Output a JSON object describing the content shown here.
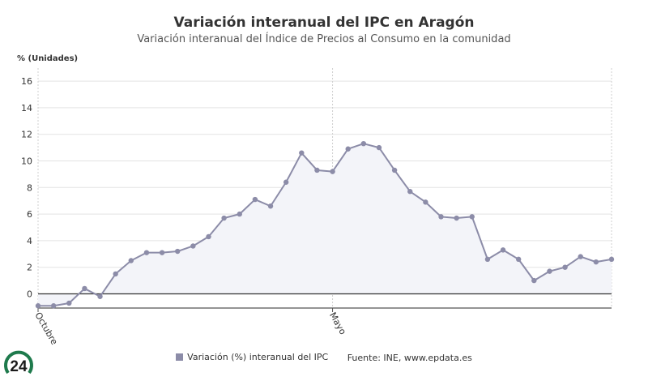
{
  "title": "Variación interanual del IPC en Aragón",
  "subtitle": "Variación interanual del Índice de Precios al Consumo en la comunidad",
  "legend": {
    "series_label": "Variación (%) interanual del IPC",
    "source": "Fuente: INE, www.epdata.es"
  },
  "logo": {
    "text": "24"
  },
  "colors": {
    "series": "#8c8ca8",
    "fill": "#f3f4f9",
    "grid": "#e3e3e3",
    "zero_line": "#333333"
  },
  "chart_data": {
    "type": "area",
    "ylabel": "% (Unidades)",
    "ylim": [
      -1,
      17
    ],
    "yticks": [
      0,
      2,
      4,
      6,
      8,
      10,
      12,
      14,
      16
    ],
    "x_tick_labels": [
      {
        "index": 0,
        "label": "Octubre"
      },
      {
        "index": 19,
        "label": "Mayo"
      }
    ],
    "grid": true,
    "legend_position": "bottom",
    "series": [
      {
        "name": "Variación (%) interanual del IPC",
        "values": [
          -0.9,
          -0.9,
          -0.7,
          0.4,
          -0.2,
          1.5,
          2.5,
          3.1,
          3.1,
          3.2,
          3.6,
          4.3,
          5.7,
          6.0,
          7.1,
          6.6,
          8.4,
          10.6,
          9.3,
          9.2,
          10.9,
          11.3,
          11.0,
          9.3,
          7.7,
          6.9,
          5.8,
          5.7,
          5.8,
          2.6,
          3.3,
          2.6,
          1.0,
          1.7,
          2.0,
          2.8,
          2.4,
          2.6
        ]
      }
    ]
  }
}
